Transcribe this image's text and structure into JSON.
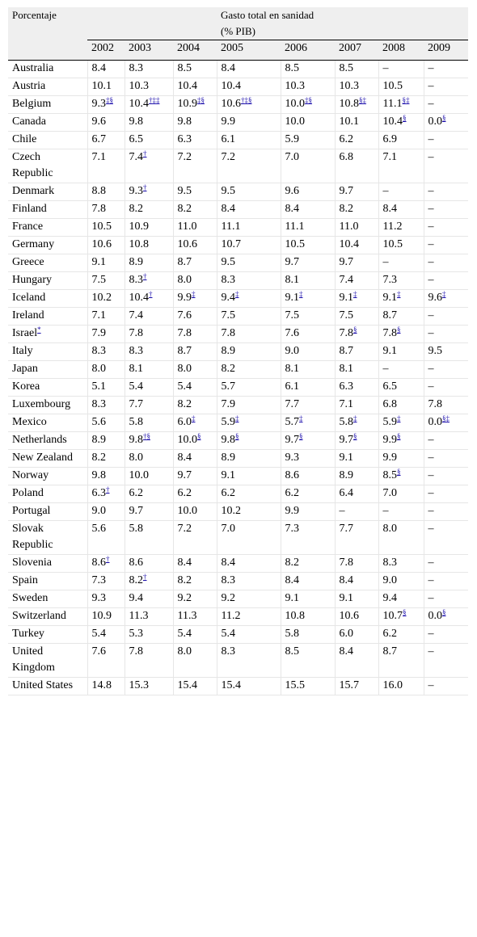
{
  "header": {
    "corner_label": "Porcentaje",
    "group_label": "Gasto total en sanidad",
    "group_sublabel": "(% PIB)",
    "years": [
      "2002",
      "2003",
      "2004",
      "2005",
      "2006",
      "2007",
      "2008",
      "2009"
    ]
  },
  "rows": [
    {
      "country": "Australia",
      "cells": [
        {
          "v": "8.4",
          "s": ""
        },
        {
          "v": "8.3",
          "s": ""
        },
        {
          "v": "8.5",
          "s": ""
        },
        {
          "v": "8.4",
          "s": ""
        },
        {
          "v": "8.5",
          "s": ""
        },
        {
          "v": "8.5",
          "s": ""
        },
        {
          "v": "–",
          "s": ""
        },
        {
          "v": "–",
          "s": ""
        }
      ]
    },
    {
      "country": "Austria",
      "cells": [
        {
          "v": "10.1",
          "s": ""
        },
        {
          "v": "10.3",
          "s": ""
        },
        {
          "v": "10.4",
          "s": ""
        },
        {
          "v": "10.4",
          "s": ""
        },
        {
          "v": "10.3",
          "s": ""
        },
        {
          "v": "10.3",
          "s": ""
        },
        {
          "v": "10.5",
          "s": ""
        },
        {
          "v": "–",
          "s": ""
        }
      ]
    },
    {
      "country": "Belgium",
      "cells": [
        {
          "v": "9.3",
          "s": "‡§"
        },
        {
          "v": "10.4",
          "s": "†‡‡"
        },
        {
          "v": "10.9",
          "s": "‡§"
        },
        {
          "v": "10.6",
          "s": "†‡§"
        },
        {
          "v": "10.0",
          "s": "‡§"
        },
        {
          "v": "10.8",
          "s": "§‡"
        },
        {
          "v": "11.1",
          "s": "§‡"
        },
        {
          "v": "–",
          "s": ""
        }
      ]
    },
    {
      "country": "Canada",
      "cells": [
        {
          "v": "9.6",
          "s": ""
        },
        {
          "v": "9.8",
          "s": ""
        },
        {
          "v": "9.8",
          "s": ""
        },
        {
          "v": "9.9",
          "s": ""
        },
        {
          "v": "10.0",
          "s": ""
        },
        {
          "v": "10.1",
          "s": ""
        },
        {
          "v": "10.4",
          "s": "§"
        },
        {
          "v": "0.0",
          "s": "§"
        }
      ]
    },
    {
      "country": "Chile",
      "cells": [
        {
          "v": "6.7",
          "s": ""
        },
        {
          "v": "6.5",
          "s": ""
        },
        {
          "v": "6.3",
          "s": ""
        },
        {
          "v": "6.1",
          "s": ""
        },
        {
          "v": "5.9",
          "s": ""
        },
        {
          "v": "6.2",
          "s": ""
        },
        {
          "v": "6.9",
          "s": ""
        },
        {
          "v": "–",
          "s": ""
        }
      ]
    },
    {
      "country": "Czech Republic",
      "tall": true,
      "cells": [
        {
          "v": "7.1",
          "s": ""
        },
        {
          "v": "7.4",
          "s": "†"
        },
        {
          "v": "7.2",
          "s": ""
        },
        {
          "v": "7.2",
          "s": ""
        },
        {
          "v": "7.0",
          "s": ""
        },
        {
          "v": "6.8",
          "s": ""
        },
        {
          "v": "7.1",
          "s": ""
        },
        {
          "v": "–",
          "s": ""
        }
      ]
    },
    {
      "country": "Denmark",
      "cells": [
        {
          "v": "8.8",
          "s": ""
        },
        {
          "v": "9.3",
          "s": "†"
        },
        {
          "v": "9.5",
          "s": ""
        },
        {
          "v": "9.5",
          "s": ""
        },
        {
          "v": "9.6",
          "s": ""
        },
        {
          "v": "9.7",
          "s": ""
        },
        {
          "v": "–",
          "s": ""
        },
        {
          "v": "–",
          "s": ""
        }
      ]
    },
    {
      "country": "Finland",
      "cells": [
        {
          "v": "7.8",
          "s": ""
        },
        {
          "v": "8.2",
          "s": ""
        },
        {
          "v": "8.2",
          "s": ""
        },
        {
          "v": "8.4",
          "s": ""
        },
        {
          "v": "8.4",
          "s": ""
        },
        {
          "v": "8.2",
          "s": ""
        },
        {
          "v": "8.4",
          "s": ""
        },
        {
          "v": "–",
          "s": ""
        }
      ]
    },
    {
      "country": "France",
      "cells": [
        {
          "v": "10.5",
          "s": ""
        },
        {
          "v": "10.9",
          "s": ""
        },
        {
          "v": "11.0",
          "s": ""
        },
        {
          "v": "11.1",
          "s": ""
        },
        {
          "v": "11.1",
          "s": ""
        },
        {
          "v": "11.0",
          "s": ""
        },
        {
          "v": "11.2",
          "s": ""
        },
        {
          "v": "–",
          "s": ""
        }
      ]
    },
    {
      "country": "Germany",
      "cells": [
        {
          "v": "10.6",
          "s": ""
        },
        {
          "v": "10.8",
          "s": ""
        },
        {
          "v": "10.6",
          "s": ""
        },
        {
          "v": "10.7",
          "s": ""
        },
        {
          "v": "10.5",
          "s": ""
        },
        {
          "v": "10.4",
          "s": ""
        },
        {
          "v": "10.5",
          "s": ""
        },
        {
          "v": "–",
          "s": ""
        }
      ]
    },
    {
      "country": "Greece",
      "cells": [
        {
          "v": "9.1",
          "s": ""
        },
        {
          "v": "8.9",
          "s": ""
        },
        {
          "v": "8.7",
          "s": ""
        },
        {
          "v": "9.5",
          "s": ""
        },
        {
          "v": "9.7",
          "s": ""
        },
        {
          "v": "9.7",
          "s": ""
        },
        {
          "v": "–",
          "s": ""
        },
        {
          "v": "–",
          "s": ""
        }
      ]
    },
    {
      "country": "Hungary",
      "cells": [
        {
          "v": "7.5",
          "s": ""
        },
        {
          "v": "8.3",
          "s": "†"
        },
        {
          "v": "8.0",
          "s": ""
        },
        {
          "v": "8.3",
          "s": ""
        },
        {
          "v": "8.1",
          "s": ""
        },
        {
          "v": "7.4",
          "s": ""
        },
        {
          "v": "7.3",
          "s": ""
        },
        {
          "v": "–",
          "s": ""
        }
      ]
    },
    {
      "country": "Iceland",
      "cells": [
        {
          "v": "10.2",
          "s": ""
        },
        {
          "v": "10.4",
          "s": "†"
        },
        {
          "v": "9.9",
          "s": "‡"
        },
        {
          "v": "9.4",
          "s": "‡"
        },
        {
          "v": "9.1",
          "s": "‡"
        },
        {
          "v": "9.1",
          "s": "‡"
        },
        {
          "v": "9.1",
          "s": "‡"
        },
        {
          "v": "9.6",
          "s": "‡"
        }
      ]
    },
    {
      "country": "Ireland",
      "cells": [
        {
          "v": "7.1",
          "s": ""
        },
        {
          "v": "7.4",
          "s": ""
        },
        {
          "v": "7.6",
          "s": ""
        },
        {
          "v": "7.5",
          "s": ""
        },
        {
          "v": "7.5",
          "s": ""
        },
        {
          "v": "7.5",
          "s": ""
        },
        {
          "v": "8.7",
          "s": ""
        },
        {
          "v": "–",
          "s": ""
        }
      ]
    },
    {
      "country": "Israel",
      "country_sup": "*",
      "cells": [
        {
          "v": "7.9",
          "s": ""
        },
        {
          "v": "7.8",
          "s": ""
        },
        {
          "v": "7.8",
          "s": ""
        },
        {
          "v": "7.8",
          "s": ""
        },
        {
          "v": "7.6",
          "s": ""
        },
        {
          "v": "7.8",
          "s": "§"
        },
        {
          "v": "7.8",
          "s": "§"
        },
        {
          "v": "–",
          "s": ""
        }
      ]
    },
    {
      "country": "Italy",
      "cells": [
        {
          "v": "8.3",
          "s": ""
        },
        {
          "v": "8.3",
          "s": ""
        },
        {
          "v": "8.7",
          "s": ""
        },
        {
          "v": "8.9",
          "s": ""
        },
        {
          "v": "9.0",
          "s": ""
        },
        {
          "v": "8.7",
          "s": ""
        },
        {
          "v": "9.1",
          "s": ""
        },
        {
          "v": "9.5",
          "s": ""
        }
      ]
    },
    {
      "country": "Japan",
      "cells": [
        {
          "v": "8.0",
          "s": ""
        },
        {
          "v": "8.1",
          "s": ""
        },
        {
          "v": "8.0",
          "s": ""
        },
        {
          "v": "8.2",
          "s": ""
        },
        {
          "v": "8.1",
          "s": ""
        },
        {
          "v": "8.1",
          "s": ""
        },
        {
          "v": "–",
          "s": ""
        },
        {
          "v": "–",
          "s": ""
        }
      ]
    },
    {
      "country": "Korea",
      "cells": [
        {
          "v": "5.1",
          "s": ""
        },
        {
          "v": "5.4",
          "s": ""
        },
        {
          "v": "5.4",
          "s": ""
        },
        {
          "v": "5.7",
          "s": ""
        },
        {
          "v": "6.1",
          "s": ""
        },
        {
          "v": "6.3",
          "s": ""
        },
        {
          "v": "6.5",
          "s": ""
        },
        {
          "v": "–",
          "s": ""
        }
      ]
    },
    {
      "country": "Luxembourg",
      "cells": [
        {
          "v": "8.3",
          "s": ""
        },
        {
          "v": "7.7",
          "s": ""
        },
        {
          "v": "8.2",
          "s": ""
        },
        {
          "v": "7.9",
          "s": ""
        },
        {
          "v": "7.7",
          "s": ""
        },
        {
          "v": "7.1",
          "s": ""
        },
        {
          "v": "6.8",
          "s": ""
        },
        {
          "v": "7.8",
          "s": ""
        }
      ]
    },
    {
      "country": "Mexico",
      "cells": [
        {
          "v": "5.6",
          "s": ""
        },
        {
          "v": "5.8",
          "s": ""
        },
        {
          "v": "6.0",
          "s": "‡"
        },
        {
          "v": "5.9",
          "s": "‡"
        },
        {
          "v": "5.7",
          "s": "‡"
        },
        {
          "v": "5.8",
          "s": "‡"
        },
        {
          "v": "5.9",
          "s": "‡"
        },
        {
          "v": "0.0",
          "s": "§‡"
        }
      ]
    },
    {
      "country": "Netherlands",
      "cells": [
        {
          "v": "8.9",
          "s": ""
        },
        {
          "v": "9.8",
          "s": "†§"
        },
        {
          "v": "10.0",
          "s": "§"
        },
        {
          "v": "9.8",
          "s": "§"
        },
        {
          "v": "9.7",
          "s": "§"
        },
        {
          "v": "9.7",
          "s": "§"
        },
        {
          "v": "9.9",
          "s": "§"
        },
        {
          "v": "–",
          "s": ""
        }
      ]
    },
    {
      "country": "New Zealand",
      "cells": [
        {
          "v": "8.2",
          "s": ""
        },
        {
          "v": "8.0",
          "s": ""
        },
        {
          "v": "8.4",
          "s": ""
        },
        {
          "v": "8.9",
          "s": ""
        },
        {
          "v": "9.3",
          "s": ""
        },
        {
          "v": "9.1",
          "s": ""
        },
        {
          "v": "9.9",
          "s": ""
        },
        {
          "v": "–",
          "s": ""
        }
      ]
    },
    {
      "country": "Norway",
      "cells": [
        {
          "v": "9.8",
          "s": ""
        },
        {
          "v": "10.0",
          "s": ""
        },
        {
          "v": "9.7",
          "s": ""
        },
        {
          "v": "9.1",
          "s": ""
        },
        {
          "v": "8.6",
          "s": ""
        },
        {
          "v": "8.9",
          "s": ""
        },
        {
          "v": "8.5",
          "s": "§"
        },
        {
          "v": "–",
          "s": ""
        }
      ]
    },
    {
      "country": "Poland",
      "cells": [
        {
          "v": "6.3",
          "s": "†"
        },
        {
          "v": "6.2",
          "s": ""
        },
        {
          "v": "6.2",
          "s": ""
        },
        {
          "v": "6.2",
          "s": ""
        },
        {
          "v": "6.2",
          "s": ""
        },
        {
          "v": "6.4",
          "s": ""
        },
        {
          "v": "7.0",
          "s": ""
        },
        {
          "v": "–",
          "s": ""
        }
      ]
    },
    {
      "country": "Portugal",
      "cells": [
        {
          "v": "9.0",
          "s": ""
        },
        {
          "v": "9.7",
          "s": ""
        },
        {
          "v": "10.0",
          "s": ""
        },
        {
          "v": "10.2",
          "s": ""
        },
        {
          "v": "9.9",
          "s": ""
        },
        {
          "v": "–",
          "s": ""
        },
        {
          "v": "–",
          "s": ""
        },
        {
          "v": "–",
          "s": ""
        }
      ]
    },
    {
      "country": "Slovak Republic",
      "tall": true,
      "cells": [
        {
          "v": "5.6",
          "s": ""
        },
        {
          "v": "5.8",
          "s": ""
        },
        {
          "v": "7.2",
          "s": ""
        },
        {
          "v": "7.0",
          "s": ""
        },
        {
          "v": "7.3",
          "s": ""
        },
        {
          "v": "7.7",
          "s": ""
        },
        {
          "v": "8.0",
          "s": ""
        },
        {
          "v": "–",
          "s": ""
        }
      ]
    },
    {
      "country": "Slovenia",
      "cells": [
        {
          "v": "8.6",
          "s": "†"
        },
        {
          "v": "8.6",
          "s": ""
        },
        {
          "v": "8.4",
          "s": ""
        },
        {
          "v": "8.4",
          "s": ""
        },
        {
          "v": "8.2",
          "s": ""
        },
        {
          "v": "7.8",
          "s": ""
        },
        {
          "v": "8.3",
          "s": ""
        },
        {
          "v": "–",
          "s": ""
        }
      ]
    },
    {
      "country": "Spain",
      "cells": [
        {
          "v": "7.3",
          "s": ""
        },
        {
          "v": "8.2",
          "s": "†"
        },
        {
          "v": "8.2",
          "s": ""
        },
        {
          "v": "8.3",
          "s": ""
        },
        {
          "v": "8.4",
          "s": ""
        },
        {
          "v": "8.4",
          "s": ""
        },
        {
          "v": "9.0",
          "s": ""
        },
        {
          "v": "–",
          "s": ""
        }
      ]
    },
    {
      "country": "Sweden",
      "cells": [
        {
          "v": "9.3",
          "s": ""
        },
        {
          "v": "9.4",
          "s": ""
        },
        {
          "v": "9.2",
          "s": ""
        },
        {
          "v": "9.2",
          "s": ""
        },
        {
          "v": "9.1",
          "s": ""
        },
        {
          "v": "9.1",
          "s": ""
        },
        {
          "v": "9.4",
          "s": ""
        },
        {
          "v": "–",
          "s": ""
        }
      ]
    },
    {
      "country": "Switzerland",
      "cells": [
        {
          "v": "10.9",
          "s": ""
        },
        {
          "v": "11.3",
          "s": ""
        },
        {
          "v": "11.3",
          "s": ""
        },
        {
          "v": "11.2",
          "s": ""
        },
        {
          "v": "10.8",
          "s": ""
        },
        {
          "v": "10.6",
          "s": ""
        },
        {
          "v": "10.7",
          "s": "§"
        },
        {
          "v": "0.0",
          "s": "§"
        }
      ]
    },
    {
      "country": "Turkey",
      "cells": [
        {
          "v": "5.4",
          "s": ""
        },
        {
          "v": "5.3",
          "s": ""
        },
        {
          "v": "5.4",
          "s": ""
        },
        {
          "v": "5.4",
          "s": ""
        },
        {
          "v": "5.8",
          "s": ""
        },
        {
          "v": "6.0",
          "s": ""
        },
        {
          "v": "6.2",
          "s": ""
        },
        {
          "v": "–",
          "s": ""
        }
      ]
    },
    {
      "country": "United Kingdom",
      "tall": true,
      "cells": [
        {
          "v": "7.6",
          "s": ""
        },
        {
          "v": "7.8",
          "s": ""
        },
        {
          "v": "8.0",
          "s": ""
        },
        {
          "v": "8.3",
          "s": ""
        },
        {
          "v": "8.5",
          "s": ""
        },
        {
          "v": "8.4",
          "s": ""
        },
        {
          "v": "8.7",
          "s": ""
        },
        {
          "v": "–",
          "s": ""
        }
      ]
    },
    {
      "country": "United States",
      "cells": [
        {
          "v": "14.8",
          "s": ""
        },
        {
          "v": "15.3",
          "s": ""
        },
        {
          "v": "15.4",
          "s": ""
        },
        {
          "v": "15.4",
          "s": ""
        },
        {
          "v": "15.5",
          "s": ""
        },
        {
          "v": "15.7",
          "s": ""
        },
        {
          "v": "16.0",
          "s": ""
        },
        {
          "v": "–",
          "s": ""
        }
      ]
    }
  ]
}
